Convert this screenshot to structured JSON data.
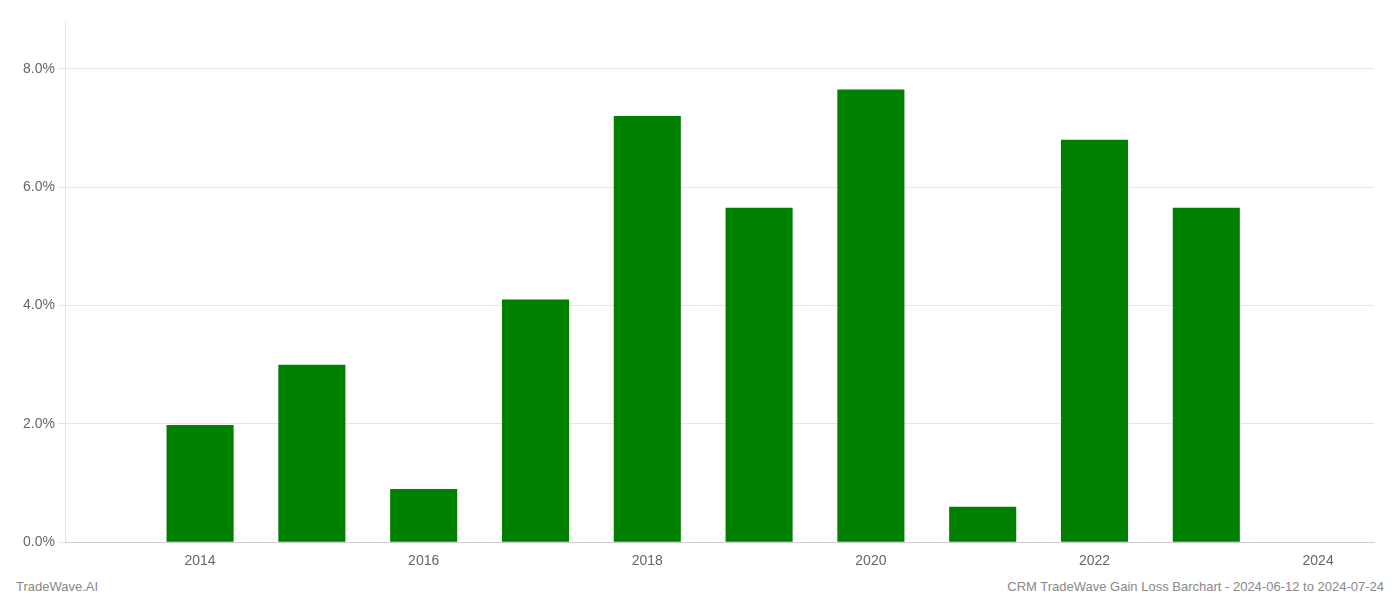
{
  "chart_data": {
    "type": "bar",
    "x": [
      2014,
      2015,
      2016,
      2017,
      2018,
      2019,
      2020,
      2021,
      2022,
      2023
    ],
    "values": [
      0.0198,
      0.03,
      0.009,
      0.041,
      0.072,
      0.0565,
      0.0765,
      0.006,
      0.068,
      0.0565
    ],
    "color": "#008000",
    "xlim": [
      2012.8,
      2024.5
    ],
    "xticks": [
      2014,
      2016,
      2018,
      2020,
      2022,
      2024
    ],
    "ylim": [
      0,
      0.088
    ],
    "yticks": [
      {
        "value": 0.0,
        "label": "0.0%"
      },
      {
        "value": 0.02,
        "label": "2.0%"
      },
      {
        "value": 0.04,
        "label": "4.0%"
      },
      {
        "value": 0.06,
        "label": "6.0%"
      },
      {
        "value": 0.08,
        "label": "8.0%"
      }
    ],
    "grid": true,
    "annotations": [
      "TradeWave.AI",
      "CRM TradeWave Gain Loss Barchart - 2024-06-12 to 2024-07-24"
    ]
  }
}
